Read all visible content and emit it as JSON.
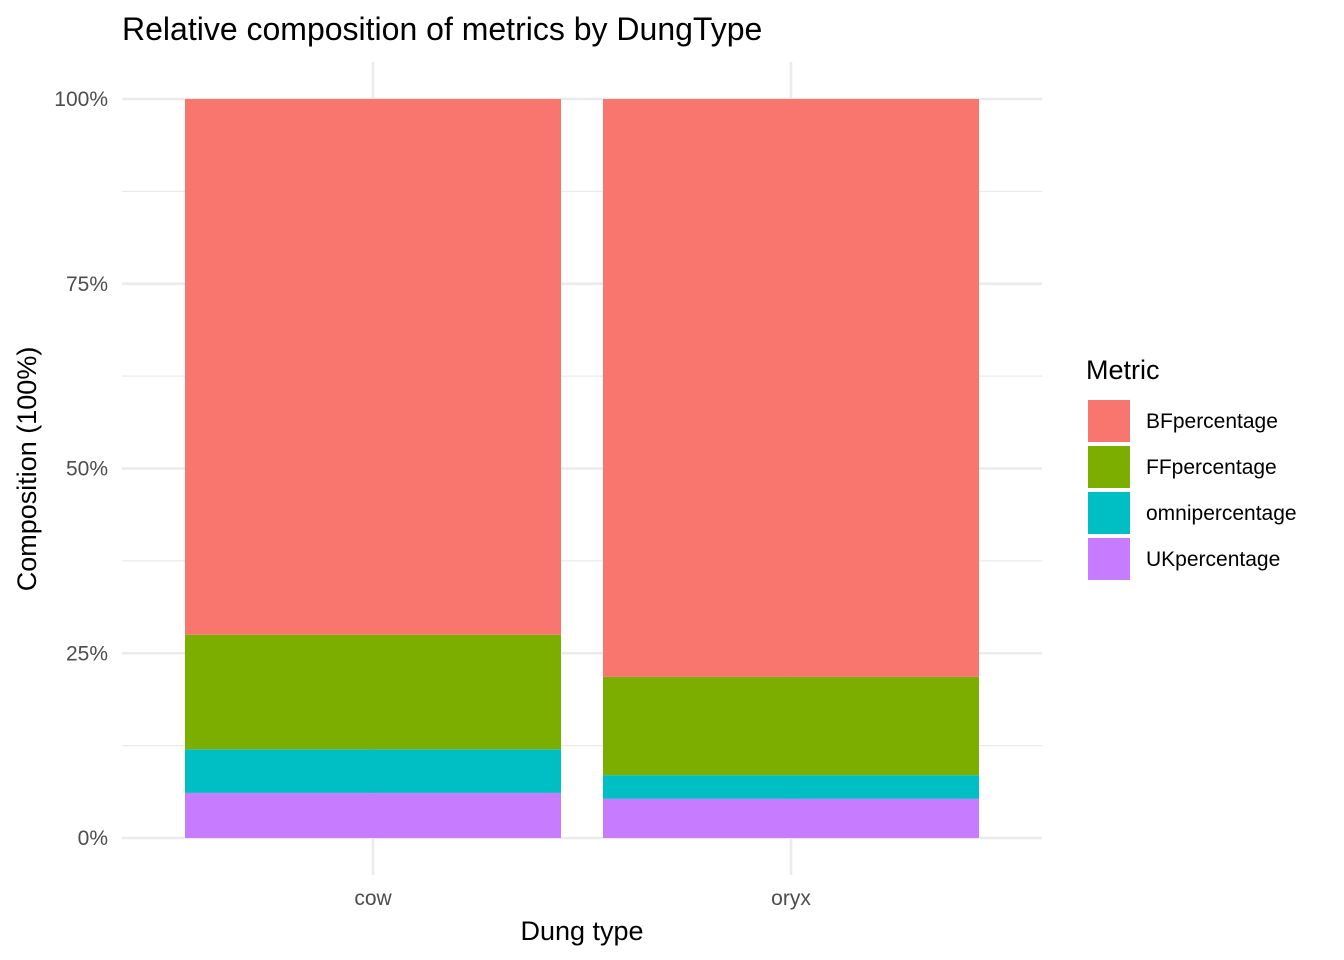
{
  "chart_data": {
    "type": "bar",
    "stacked": true,
    "title": "Relative composition of metrics by DungType",
    "xlabel": "Dung type",
    "ylabel": "Composition (100%)",
    "categories": [
      "cow",
      "oryx"
    ],
    "ylim": [
      0,
      1
    ],
    "yticks": [
      0,
      0.25,
      0.5,
      0.75,
      1
    ],
    "ytick_labels": [
      "0%",
      "25%",
      "50%",
      "75%",
      "100%"
    ],
    "grid": true,
    "legend_title": "Metric",
    "legend_position": "right",
    "series": [
      {
        "name": "BFpercentage",
        "color": "#F8766D",
        "values": [
          0.725,
          0.782
        ]
      },
      {
        "name": "FFpercentage",
        "color": "#7CAE00",
        "values": [
          0.155,
          0.133
        ]
      },
      {
        "name": "omnipercentage",
        "color": "#00BFC4",
        "values": [
          0.059,
          0.032
        ]
      },
      {
        "name": "UKpercentage",
        "color": "#C77CFF",
        "values": [
          0.061,
          0.053
        ]
      }
    ]
  }
}
